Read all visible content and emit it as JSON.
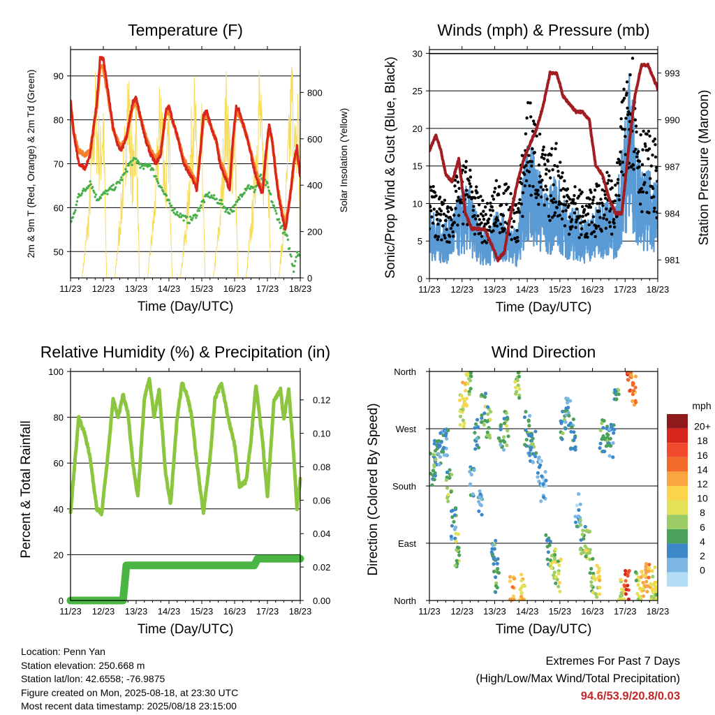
{
  "info": {
    "location": "Location: Penn Yan",
    "elevation": "Station elevation: 250.668 m",
    "latlon": "Station lat/lon: 42.6558; -76.9875",
    "created": "Figure created on Mon, 2025-08-18, at 23:30 UTC",
    "recent": "Most recent data timestamp: 2025/08/18 23:15:00"
  },
  "extremes": {
    "title": "Extremes For Past 7 Days",
    "subtitle": "(High/Low/Max Wind/Total Precipitation)",
    "values": "94.6/53.9/20.8/0.03"
  },
  "colors": {
    "temp2m": "#d9261c",
    "temp9m": "#f5812a",
    "dewpoint": "#47b04a",
    "solar": "#f7dc5c",
    "gust": "#000000",
    "wind": "#5b9bd5",
    "pressure": "#a11d21",
    "rh": "#8cc63f",
    "precip": "#4bb543"
  },
  "chart_data": [
    {
      "type": "line",
      "title": "Temperature (F)",
      "xlabel": "Time (Day/UTC)",
      "ylabel": "2m & 9m T (Red, Orange) & 2m Td (Green)",
      "y2label": "Solar Insolation (Yellow)",
      "xticks": [
        "11/23",
        "12/23",
        "13/23",
        "14/23",
        "15/23",
        "16/23",
        "17/23",
        "18/23"
      ],
      "xlim": [
        0,
        7
      ],
      "ylim": [
        44,
        96
      ],
      "yticks": [
        50,
        60,
        70,
        80,
        90
      ],
      "y2lim": [
        0,
        985
      ],
      "y2ticks": [
        0,
        200,
        400,
        600,
        800
      ],
      "grid": "horizontal",
      "series": [
        {
          "name": "2m T",
          "axis": "left",
          "x": [
            0,
            0.1,
            0.25,
            0.45,
            0.6,
            0.8,
            0.9,
            1.0,
            1.15,
            1.3,
            1.45,
            1.55,
            1.7,
            1.9,
            2.0,
            2.15,
            2.3,
            2.45,
            2.6,
            2.75,
            2.9,
            3.0,
            3.15,
            3.3,
            3.45,
            3.6,
            3.75,
            3.85,
            3.95,
            4.05,
            4.15,
            4.3,
            4.45,
            4.55,
            4.7,
            4.85,
            4.95,
            5.05,
            5.15,
            5.3,
            5.45,
            5.55,
            5.7,
            5.85,
            5.95,
            6.05,
            6.15,
            6.25,
            6.35,
            6.45,
            6.55,
            6.7,
            6.8,
            6.9,
            7.0
          ],
          "values": [
            84,
            77,
            70,
            69,
            72,
            84,
            94,
            94,
            86,
            78,
            74,
            73,
            76,
            84,
            85,
            80,
            75,
            72,
            70,
            72,
            82,
            83,
            79,
            75,
            70,
            68,
            66,
            64,
            72,
            81,
            82,
            78,
            75,
            70,
            67,
            64,
            76,
            83,
            82,
            78,
            74,
            70,
            66,
            63,
            72,
            79,
            75,
            68,
            62,
            58,
            55,
            63,
            70,
            74,
            67
          ]
        },
        {
          "name": "9m T",
          "axis": "left",
          "x": [
            0,
            0.1,
            0.25,
            0.45,
            0.6,
            0.8,
            0.9,
            1.0,
            1.15,
            1.3,
            1.45,
            1.55,
            1.7,
            1.9,
            2.0,
            2.15,
            2.3,
            2.45,
            2.6,
            2.75,
            2.9,
            3.0,
            3.15,
            3.3,
            3.45,
            3.6,
            3.75,
            3.85,
            3.95,
            4.05,
            4.15,
            4.3,
            4.45,
            4.55,
            4.7,
            4.85,
            4.95,
            5.05,
            5.15,
            5.3,
            5.45,
            5.55,
            5.7,
            5.85,
            5.95,
            6.05,
            6.15,
            6.25,
            6.35,
            6.45,
            6.55,
            6.7,
            6.8,
            6.9,
            7.0
          ],
          "values": [
            84,
            77,
            73,
            72,
            73,
            83,
            92,
            92,
            85,
            78,
            75,
            74,
            76,
            83,
            84,
            80,
            76,
            73,
            71,
            73,
            81,
            82,
            79,
            75,
            71,
            69,
            67,
            65,
            72,
            80,
            81,
            78,
            75,
            71,
            68,
            65,
            75,
            82,
            81,
            78,
            74,
            71,
            67,
            64,
            72,
            78,
            75,
            68,
            63,
            59,
            56,
            63,
            70,
            73,
            67
          ]
        },
        {
          "name": "2m Td",
          "axis": "left",
          "x": [
            0,
            0.1,
            0.25,
            0.45,
            0.6,
            0.8,
            1.0,
            1.2,
            1.4,
            1.6,
            1.8,
            2.0,
            2.2,
            2.4,
            2.6,
            2.8,
            3.0,
            3.2,
            3.4,
            3.6,
            3.8,
            4.0,
            4.2,
            4.4,
            4.6,
            4.8,
            5.0,
            5.2,
            5.4,
            5.6,
            5.8,
            6.0,
            6.2,
            6.4,
            6.6,
            6.8,
            6.9,
            7.0
          ],
          "values": [
            57,
            58,
            63,
            64,
            66,
            62,
            63,
            64,
            65,
            67,
            70,
            71,
            69,
            70,
            67,
            64,
            61,
            59,
            58,
            57,
            58,
            61,
            63,
            62,
            61,
            59,
            60,
            63,
            65,
            64,
            67,
            65,
            60,
            56,
            53,
            46,
            50,
            49
          ]
        },
        {
          "name": "Solar",
          "axis": "right",
          "x": [
            0,
            0.35,
            0.55,
            0.75,
            0.9,
            1.0,
            1.1,
            1.35,
            1.55,
            1.75,
            1.9,
            2.0,
            2.1,
            2.35,
            2.55,
            2.75,
            2.9,
            3.0,
            3.1,
            3.35,
            3.55,
            3.75,
            3.9,
            4.0,
            4.1,
            4.35,
            4.55,
            4.75,
            4.9,
            5.0,
            5.1,
            5.35,
            5.55,
            5.75,
            5.9,
            6.0,
            6.1,
            6.35,
            6.55,
            6.75,
            6.85,
            6.95,
            7.0
          ],
          "values": [
            0,
            0,
            300,
            850,
            600,
            800,
            0,
            0,
            350,
            900,
            500,
            820,
            0,
            0,
            320,
            880,
            450,
            760,
            0,
            0,
            300,
            870,
            500,
            700,
            0,
            0,
            280,
            860,
            520,
            800,
            0,
            0,
            330,
            900,
            480,
            780,
            0,
            0,
            360,
            940,
            600,
            880,
            0
          ]
        }
      ]
    },
    {
      "type": "line",
      "title": "Winds (mph) & Pressure (mb)",
      "xlabel": "Time (Day/UTC)",
      "ylabel": "Sonic/Prop Wind & Gust (Blue, Black)",
      "y2label": "Station Pressure (Maroon)",
      "xticks": [
        "11/23",
        "12/23",
        "13/23",
        "14/23",
        "15/23",
        "16/23",
        "17/23",
        "18/23"
      ],
      "xlim": [
        0,
        7
      ],
      "ylim": [
        0,
        30.5
      ],
      "yticks": [
        0,
        5,
        10,
        15,
        20,
        25,
        30
      ],
      "y2lim": [
        979.8,
        994.5
      ],
      "y2ticks": [
        981,
        984,
        987,
        990,
        993
      ],
      "grid": "horizontal",
      "series": [
        {
          "name": "Gust",
          "axis": "left",
          "x": [
            0,
            0.3,
            0.6,
            0.9,
            1.2,
            1.5,
            1.8,
            2.1,
            2.4,
            2.7,
            3.0,
            3.3,
            3.6,
            3.9,
            4.2,
            4.5,
            4.8,
            5.1,
            5.4,
            5.7,
            6.0,
            6.15,
            6.3,
            6.5,
            6.7,
            6.9,
            7.0
          ],
          "values": [
            11,
            9,
            8,
            12,
            13,
            9,
            8,
            11,
            10,
            8,
            20,
            17,
            13,
            15,
            11,
            10,
            9,
            10,
            12,
            10,
            23,
            28,
            22,
            16,
            16,
            15,
            14
          ]
        },
        {
          "name": "Wind",
          "axis": "left",
          "x": [
            0,
            0.3,
            0.6,
            0.9,
            1.2,
            1.5,
            1.8,
            2.1,
            2.4,
            2.7,
            3.0,
            3.3,
            3.6,
            3.9,
            4.2,
            4.5,
            4.8,
            5.1,
            5.4,
            5.7,
            6.0,
            6.15,
            6.3,
            6.5,
            6.7,
            6.9,
            7.0
          ],
          "values": [
            6,
            5,
            5,
            7,
            8,
            5,
            4,
            6,
            5,
            4,
            12,
            10,
            7,
            9,
            6,
            6,
            5,
            6,
            7,
            6,
            14,
            18,
            13,
            9,
            9,
            9,
            8
          ]
        },
        {
          "name": "Pressure",
          "axis": "right",
          "x": [
            0,
            0.2,
            0.35,
            0.5,
            0.7,
            0.9,
            1.1,
            1.3,
            1.5,
            1.7,
            1.9,
            2.1,
            2.3,
            2.5,
            2.7,
            2.9,
            3.1,
            3.3,
            3.5,
            3.7,
            3.9,
            4.1,
            4.3,
            4.5,
            4.7,
            4.9,
            5.1,
            5.3,
            5.5,
            5.7,
            5.9,
            6.1,
            6.3,
            6.5,
            6.7,
            6.9,
            7.0
          ],
          "values": [
            988,
            989,
            988,
            986.5,
            986,
            987.5,
            984,
            983,
            983,
            983,
            982,
            981,
            981.5,
            984,
            986,
            987.5,
            988.5,
            989.5,
            991,
            993,
            993,
            991.5,
            991,
            990.5,
            990.5,
            990,
            987,
            986.5,
            985,
            984,
            984,
            988,
            991.5,
            993.5,
            993.5,
            992.5,
            992
          ]
        }
      ]
    },
    {
      "type": "line",
      "title": "Relative Humidity (%) & Precipitation (in)",
      "xlabel": "Time (Day/UTC)",
      "ylabel": "Percent & Total Rainfall",
      "xticks": [
        "11/23",
        "12/23",
        "13/23",
        "14/23",
        "15/23",
        "16/23",
        "17/23",
        "18/23"
      ],
      "xlim": [
        0,
        7
      ],
      "ylim": [
        0,
        100
      ],
      "yticks": [
        0,
        20,
        40,
        60,
        80,
        100
      ],
      "y2lim": [
        0,
        0.137
      ],
      "y2ticks": [
        0.0,
        0.02,
        0.04,
        0.06,
        0.08,
        0.1,
        0.12
      ],
      "grid": "horizontal",
      "series": [
        {
          "name": "RH",
          "axis": "left",
          "x": [
            0,
            0.1,
            0.25,
            0.45,
            0.6,
            0.8,
            0.95,
            1.15,
            1.3,
            1.45,
            1.6,
            1.75,
            1.9,
            2.05,
            2.25,
            2.4,
            2.55,
            2.7,
            2.9,
            3.05,
            3.25,
            3.4,
            3.55,
            3.7,
            3.85,
            4.05,
            4.25,
            4.4,
            4.6,
            4.8,
            5.0,
            5.15,
            5.35,
            5.5,
            5.65,
            5.85,
            6.0,
            6.2,
            6.4,
            6.5,
            6.65,
            6.8,
            6.9,
            7.0
          ],
          "values": [
            38,
            55,
            80,
            72,
            62,
            40,
            38,
            65,
            88,
            80,
            90,
            82,
            60,
            45,
            88,
            97,
            80,
            92,
            55,
            42,
            80,
            95,
            90,
            80,
            60,
            38,
            62,
            88,
            95,
            80,
            68,
            50,
            52,
            70,
            94,
            70,
            45,
            87,
            92,
            79,
            92,
            64,
            40,
            53
          ]
        },
        {
          "name": "Precip",
          "axis": "right",
          "x": [
            0,
            1.6,
            1.65,
            1.7,
            2.0,
            3.0,
            4.0,
            5.0,
            5.6,
            5.7,
            6.0,
            7.0
          ],
          "values": [
            0,
            0,
            0.01,
            0.021,
            0.021,
            0.021,
            0.021,
            0.021,
            0.021,
            0.025,
            0.025,
            0.025
          ]
        }
      ]
    },
    {
      "type": "scatter",
      "title": "Wind Direction",
      "xlabel": "Time (Day/UTC)",
      "ylabel": "Direction (Colored By Speed)",
      "xticks": [
        "11/23",
        "12/23",
        "13/23",
        "14/23",
        "15/23",
        "16/23",
        "17/23",
        "18/23"
      ],
      "xlim": [
        0,
        7
      ],
      "ylim": [
        0,
        360
      ],
      "yticks": [
        "North",
        "East",
        "South",
        "West",
        "North"
      ],
      "grid": "horizontal",
      "legend": {
        "title": "mph",
        "position": "right",
        "labels": [
          "20+",
          "18",
          "16",
          "14",
          "12",
          "10",
          "8",
          "6",
          "4",
          "2",
          "0"
        ],
        "colors": [
          "#8e1a1c",
          "#d7261e",
          "#f24a2c",
          "#f26b2b",
          "#f9a541",
          "#fbd34c",
          "#e3e158",
          "#9ccc65",
          "#4ba05a",
          "#3d88c8",
          "#7cb6e4",
          "#b5def6"
        ]
      },
      "series": [
        {
          "name": "Direction",
          "x": [
            0.1,
            0.2,
            0.35,
            0.5,
            0.6,
            0.75,
            0.85,
            1.0,
            1.1,
            1.2,
            1.3,
            1.45,
            1.55,
            1.65,
            1.8,
            1.95,
            2.05,
            2.2,
            2.35,
            2.55,
            2.7,
            2.85,
            3.0,
            3.1,
            3.2,
            3.35,
            3.5,
            3.65,
            3.8,
            3.95,
            4.1,
            4.25,
            4.4,
            4.55,
            4.7,
            4.85,
            5.0,
            5.15,
            5.3,
            5.45,
            5.6,
            5.75,
            5.9,
            6.05,
            6.15,
            6.25,
            6.4,
            6.55,
            6.7,
            6.85,
            6.95
          ],
          "values": [
            205,
            230,
            240,
            250,
            180,
            120,
            80,
            300,
            330,
            350,
            190,
            260,
            150,
            300,
            280,
            80,
            40,
            260,
            270,
            10,
            345,
            15,
            270,
            240,
            250,
            200,
            180,
            80,
            60,
            40,
            275,
            300,
            260,
            140,
            100,
            90,
            40,
            30,
            260,
            270,
            250,
            320,
            10,
            20,
            355,
            330,
            20,
            30,
            40,
            25,
            15
          ],
          "speeds": [
            5,
            6,
            4,
            4,
            7,
            5,
            8,
            9,
            11,
            8,
            3,
            5,
            4,
            6,
            7,
            5,
            6,
            5,
            7,
            14,
            8,
            12,
            5,
            4,
            6,
            3,
            2,
            6,
            8,
            9,
            6,
            4,
            5,
            3,
            6,
            9,
            8,
            11,
            6,
            5,
            4,
            6,
            10,
            19,
            17,
            15,
            9,
            12,
            14,
            10,
            9
          ]
        }
      ]
    }
  ]
}
